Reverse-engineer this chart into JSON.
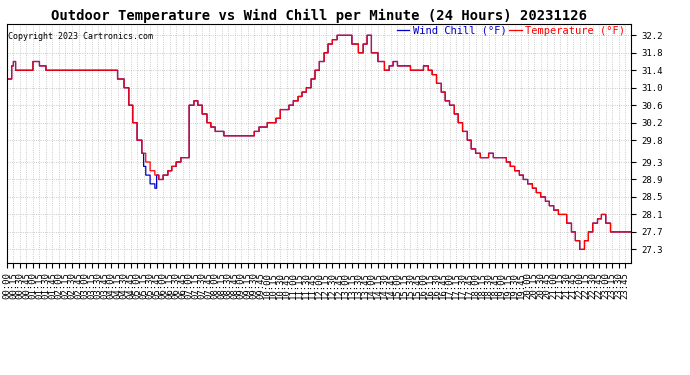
{
  "title": "Outdoor Temperature vs Wind Chill per Minute (24 Hours) 20231126",
  "copyright": "Copyright 2023 Cartronics.com",
  "legend_wind_chill": "Wind Chill (°F)",
  "legend_temperature": "Temperature (°F)",
  "ylabel_right_ticks": [
    32.2,
    31.8,
    31.4,
    31.0,
    30.6,
    30.2,
    29.8,
    29.3,
    28.9,
    28.5,
    28.1,
    27.7,
    27.3
  ],
  "ylim": [
    27.0,
    32.45
  ],
  "background_color": "#ffffff",
  "plot_bg_color": "#ffffff",
  "grid_color": "#bbbbbb",
  "wind_chill_color": "#0000cc",
  "temperature_color": "#ff0000",
  "title_fontsize": 10,
  "tick_fontsize": 6.5,
  "legend_fontsize": 7.5,
  "n_minutes": 1440,
  "x_tick_interval": 15
}
